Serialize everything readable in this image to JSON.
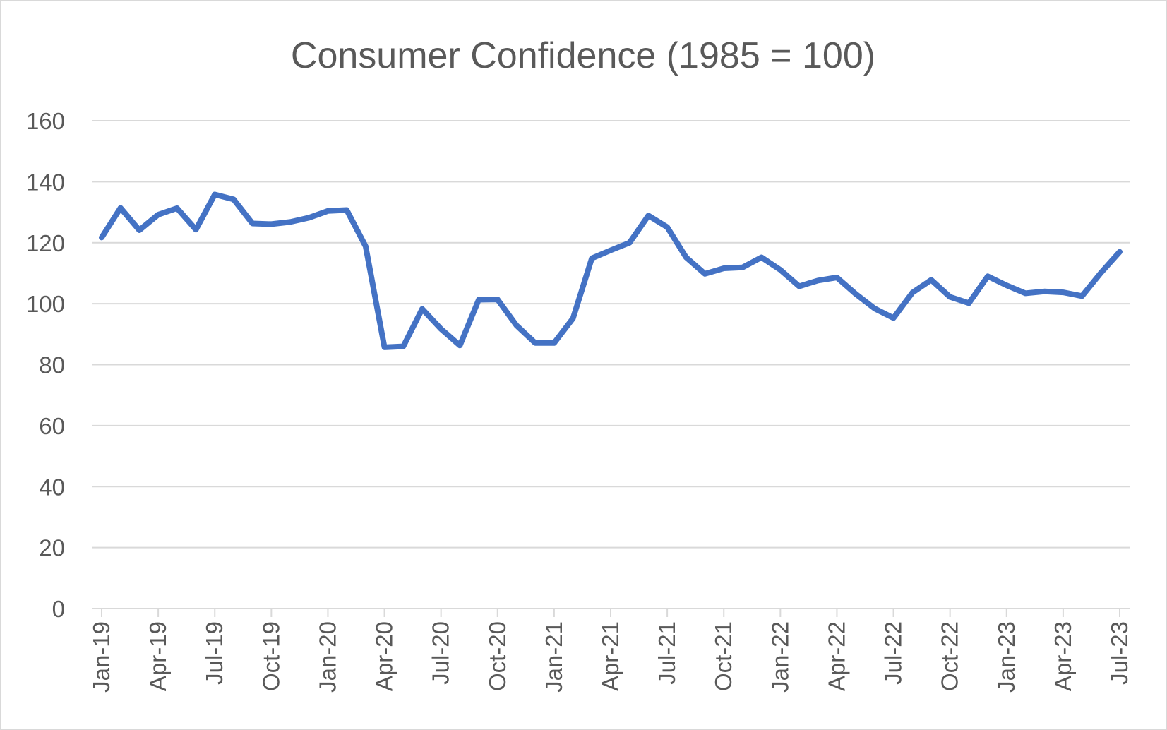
{
  "chart_data": {
    "type": "line",
    "title": "Consumer Confidence (1985 = 100)",
    "xlabel": "",
    "ylabel": "",
    "ylim": [
      0,
      160
    ],
    "yticks": [
      0,
      20,
      40,
      60,
      80,
      100,
      120,
      140,
      160
    ],
    "grid": true,
    "legend": "none",
    "line_color": "#4472c4",
    "x_tick_labels": [
      "Jan-19",
      "Apr-19",
      "Jul-19",
      "Oct-19",
      "Jan-20",
      "Apr-20",
      "Jul-20",
      "Oct-20",
      "Jan-21",
      "Apr-21",
      "Jul-21",
      "Oct-21",
      "Jan-22",
      "Apr-22",
      "Jul-22",
      "Oct-22",
      "Jan-23",
      "Apr-23",
      "Jul-23"
    ],
    "x": [
      "Jan-19",
      "Feb-19",
      "Mar-19",
      "Apr-19",
      "May-19",
      "Jun-19",
      "Jul-19",
      "Aug-19",
      "Sep-19",
      "Oct-19",
      "Nov-19",
      "Dec-19",
      "Jan-20",
      "Feb-20",
      "Mar-20",
      "Apr-20",
      "May-20",
      "Jun-20",
      "Jul-20",
      "Aug-20",
      "Sep-20",
      "Oct-20",
      "Nov-20",
      "Dec-20",
      "Jan-21",
      "Feb-21",
      "Mar-21",
      "Apr-21",
      "May-21",
      "Jun-21",
      "Jul-21",
      "Aug-21",
      "Sep-21",
      "Oct-21",
      "Nov-21",
      "Dec-21",
      "Jan-22",
      "Feb-22",
      "Mar-22",
      "Apr-22",
      "May-22",
      "Jun-22",
      "Jul-22",
      "Aug-22",
      "Sep-22",
      "Oct-22",
      "Nov-22",
      "Dec-22",
      "Jan-23",
      "Feb-23",
      "Mar-23",
      "Apr-23",
      "May-23",
      "Jun-23",
      "Jul-23"
    ],
    "series": [
      {
        "values": [
          121.7,
          131.4,
          124.1,
          129.2,
          131.3,
          124.3,
          135.8,
          134.2,
          126.3,
          126.1,
          126.8,
          128.2,
          130.4,
          130.7,
          118.8,
          85.7,
          86.0,
          98.3,
          91.7,
          86.3,
          101.3,
          101.4,
          92.9,
          87.1,
          87.1,
          95.2,
          114.9,
          117.5,
          120.0,
          128.9,
          125.1,
          115.2,
          109.8,
          111.6,
          111.9,
          115.2,
          111.1,
          105.7,
          107.6,
          108.6,
          103.2,
          98.4,
          95.3,
          103.6,
          107.8,
          102.2,
          100.2,
          109.0,
          106.0,
          103.4,
          104.0,
          103.7,
          102.5,
          110.1,
          117.0
        ]
      }
    ]
  }
}
